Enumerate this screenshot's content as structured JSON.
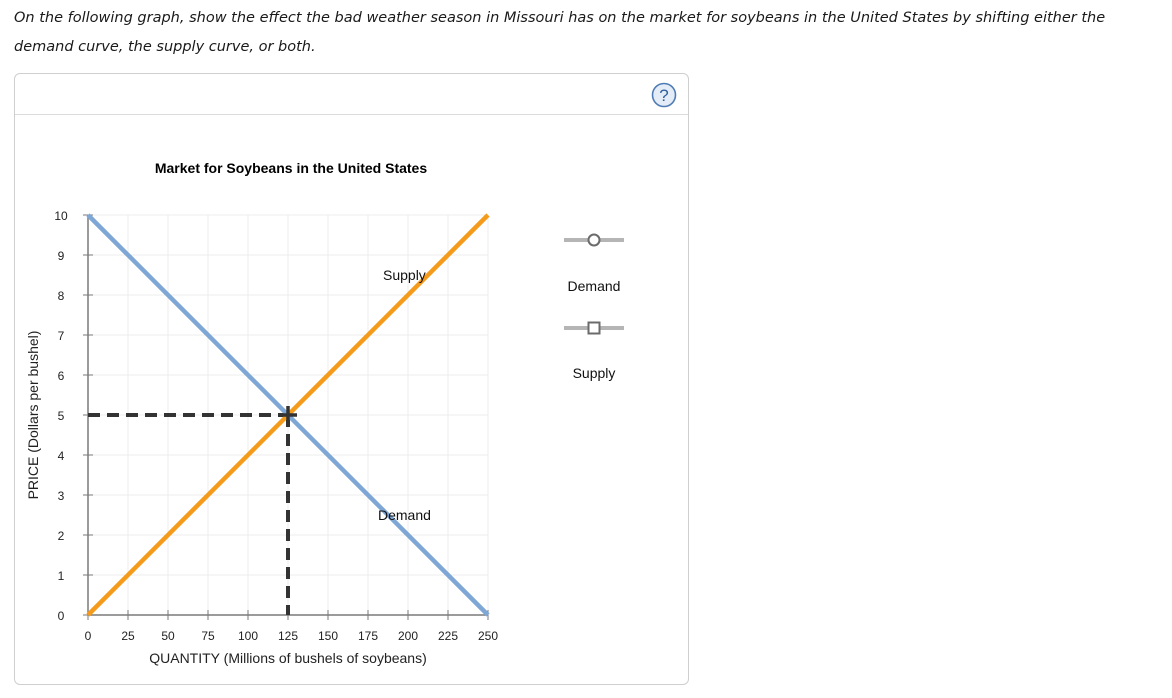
{
  "prompt": {
    "text": "On the following graph, show the effect the bad weather season in Missouri has on the market for soybeans in the United States by shifting either the demand curve, the supply curve, or both."
  },
  "panel": {
    "help_icon": "question-circle-icon",
    "help_symbol": "?"
  },
  "chart_data": {
    "type": "line",
    "title": "Market for Soybeans in the United States",
    "xlabel": "QUANTITY (Millions of bushels of soybeans)",
    "ylabel": "PRICE (Dollars per bushel)",
    "xlim": [
      0,
      250
    ],
    "ylim": [
      0,
      10
    ],
    "x_ticks": [
      0,
      25,
      50,
      75,
      100,
      125,
      150,
      175,
      200,
      225,
      250
    ],
    "y_ticks": [
      0,
      1,
      2,
      3,
      4,
      5,
      6,
      7,
      8,
      9,
      10
    ],
    "grid": true,
    "series": [
      {
        "name": "Demand",
        "color": "#7fa7d6",
        "points": [
          [
            0,
            10
          ],
          [
            250,
            0
          ]
        ],
        "label": "Demand",
        "label_at": [
          203,
          2.5
        ]
      },
      {
        "name": "Supply",
        "color": "#f59b1b",
        "points": [
          [
            0,
            0
          ],
          [
            250,
            10
          ]
        ],
        "label": "Supply",
        "label_at": [
          198,
          8.5
        ]
      }
    ],
    "equilibrium": {
      "quantity": 125,
      "price": 5,
      "guide_color": "#333333"
    }
  },
  "legend": {
    "items": [
      {
        "label": "Demand",
        "marker": "circle",
        "icon": "demand-curve-tool-icon"
      },
      {
        "label": "Supply",
        "marker": "square",
        "icon": "supply-curve-tool-icon"
      }
    ]
  }
}
